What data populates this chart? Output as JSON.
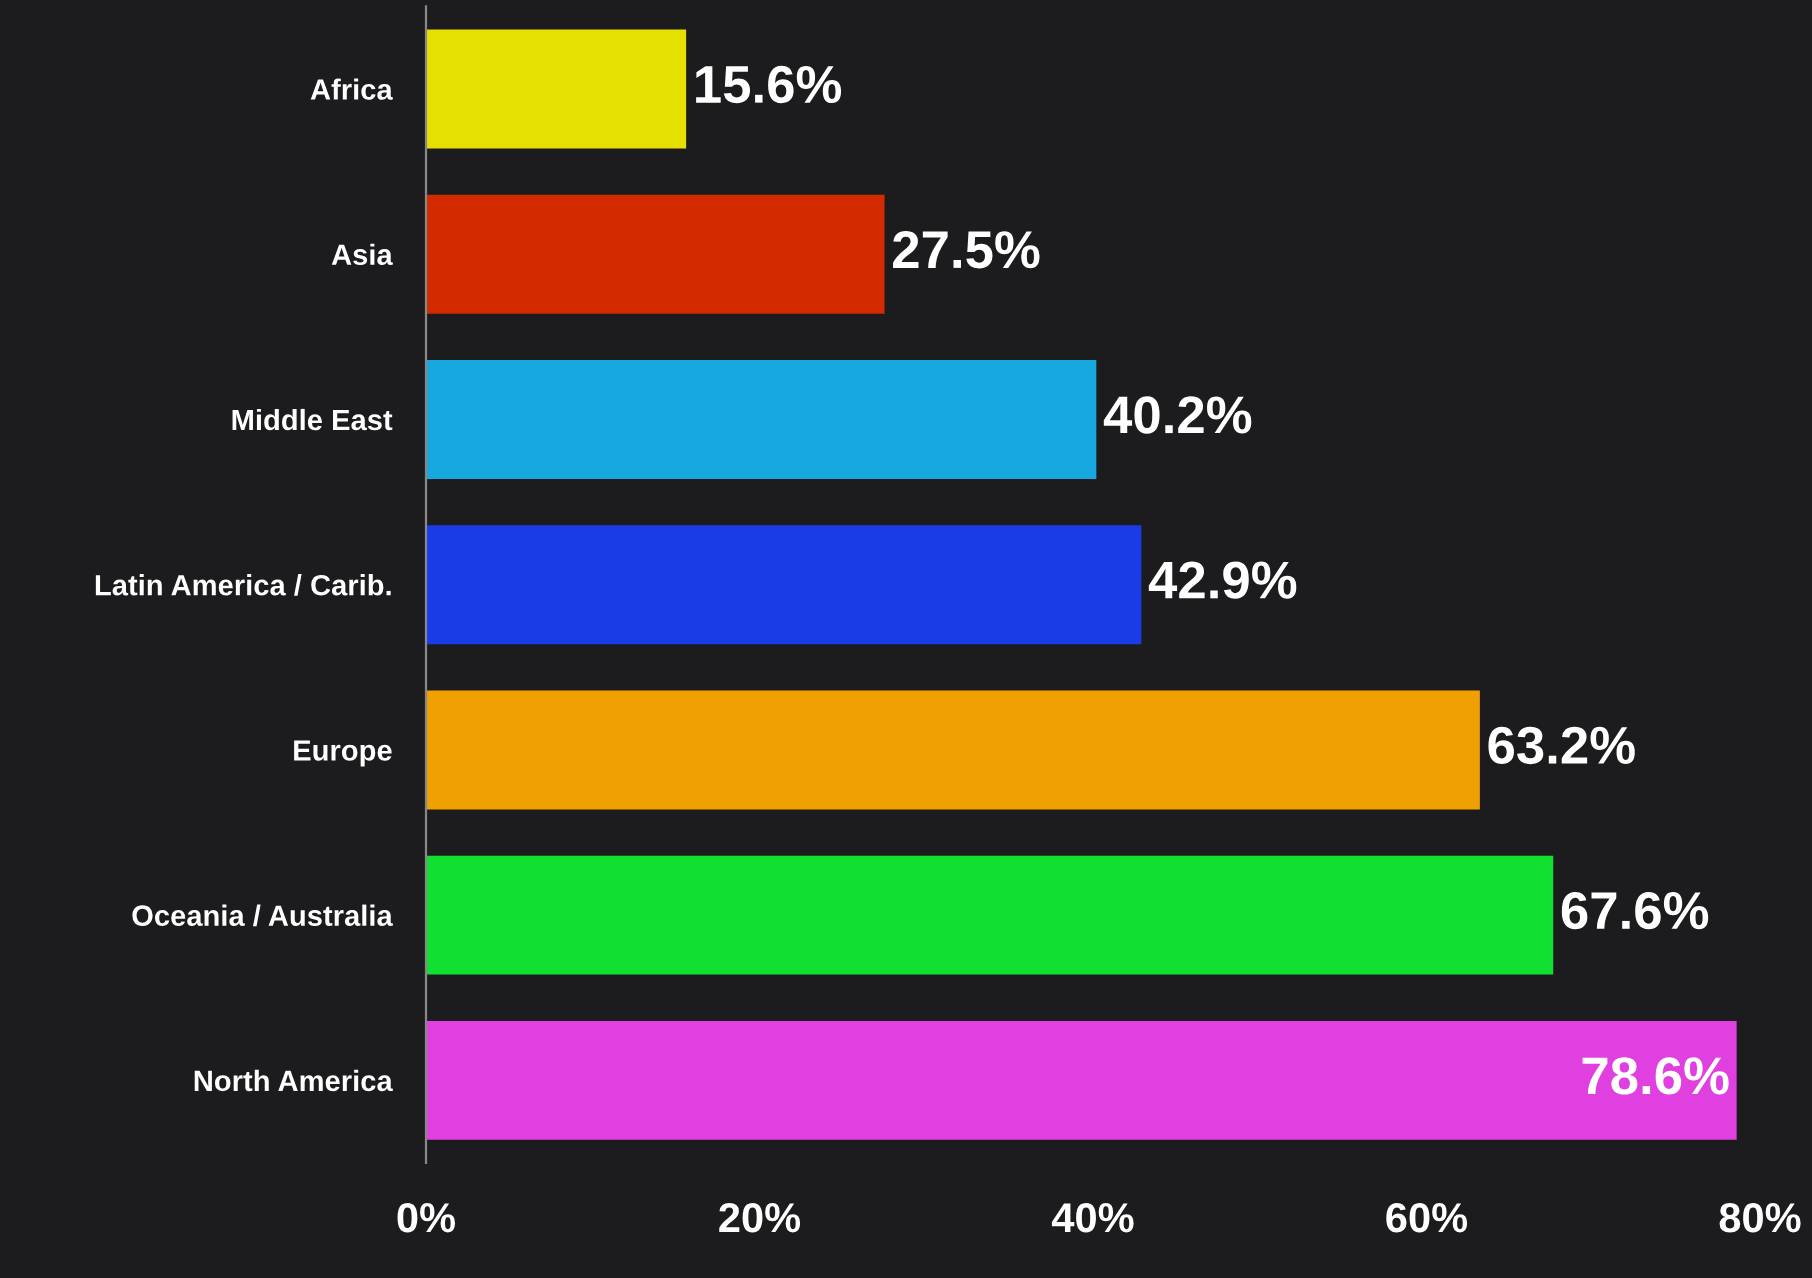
{
  "chart_data": {
    "type": "bar",
    "orientation": "horizontal",
    "categories": [
      "Africa",
      "Asia",
      "Middle East",
      "Latin America / Carib.",
      "Europe",
      "Oceania / Australia",
      "North America"
    ],
    "values": [
      15.6,
      27.5,
      40.2,
      42.9,
      63.2,
      67.6,
      78.6
    ],
    "colors": [
      "#e6e000",
      "#d42a00",
      "#18a8e0",
      "#1a3ce6",
      "#f0a000",
      "#12e030",
      "#e040e0"
    ],
    "value_labels": [
      "15.6%",
      "27.5%",
      "40.2%",
      "42.9%",
      "63.2%",
      "67.6%",
      "78.6%"
    ],
    "xlim": [
      0,
      80
    ],
    "xticks": [
      {
        "value": 0,
        "label": "0%"
      },
      {
        "value": 20,
        "label": "20%"
      },
      {
        "value": 40,
        "label": "40%"
      },
      {
        "value": 60,
        "label": "60%"
      },
      {
        "value": 80,
        "label": "80%"
      }
    ],
    "grid": false,
    "legend": false
  }
}
